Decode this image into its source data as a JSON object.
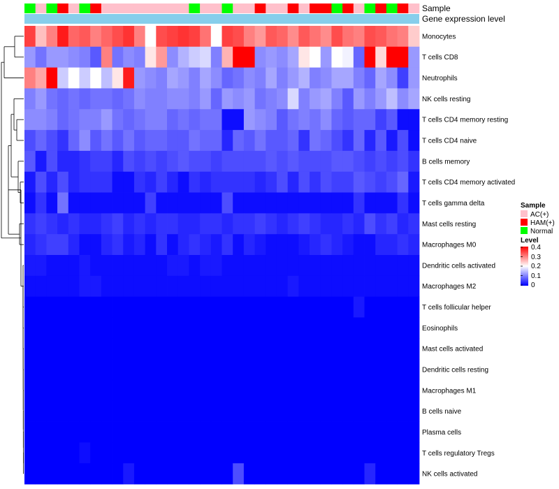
{
  "colors": {
    "low": "#0000ff",
    "mid": "#ffffff",
    "high": "#ff0000",
    "expression_band": "#87ceeb",
    "sample_colors": {
      "AC(+)": "#ffc0cb",
      "HAM(+)": "#ff0000",
      "Normal": "#00ff00"
    }
  },
  "chart_data": {
    "type": "heatmap",
    "title": "",
    "annotation_tracks": [
      "Sample",
      "Gene expression level"
    ],
    "samples": [
      "Normal",
      "AC(+)",
      "Normal",
      "HAM(+)",
      "AC(+)",
      "Normal",
      "HAM(+)",
      "AC(+)",
      "AC(+)",
      "AC(+)",
      "AC(+)",
      "AC(+)",
      "AC(+)",
      "AC(+)",
      "AC(+)",
      "Normal",
      "AC(+)",
      "AC(+)",
      "Normal",
      "AC(+)",
      "AC(+)",
      "HAM(+)",
      "AC(+)",
      "AC(+)",
      "HAM(+)",
      "AC(+)",
      "HAM(+)",
      "HAM(+)",
      "Normal",
      "HAM(+)",
      "AC(+)",
      "Normal",
      "HAM(+)",
      "Normal",
      "HAM(+)",
      "AC(+)"
    ],
    "rows": [
      "Monocytes",
      "T cells CD8",
      "Neutrophils",
      "NK cells resting",
      "T cells CD4 memory resting",
      "T cells CD4 naive",
      "B cells memory",
      "T cells CD4 memory activated",
      "T cells gamma delta",
      "Mast cells resting",
      "Macrophages M0",
      "Dendritic cells activated",
      "Macrophages M2",
      "T cells follicular helper",
      "Eosinophils",
      "Mast cells activated",
      "Dendritic cells resting",
      "Macrophages M1",
      "B cells naive",
      "Plasma cells",
      "T cells regulatory  Tregs",
      "NK cells activated"
    ],
    "values": [
      [
        0.35,
        0.25,
        0.3,
        0.38,
        0.32,
        0.33,
        0.3,
        0.32,
        0.34,
        0.36,
        0.3,
        0.2,
        0.34,
        0.35,
        0.36,
        0.35,
        0.31,
        0.2,
        0.35,
        0.34,
        0.3,
        0.28,
        0.33,
        0.32,
        0.29,
        0.33,
        0.31,
        0.29,
        0.34,
        0.31,
        0.3,
        0.34,
        0.33,
        0.31,
        0.3,
        0.24
      ],
      [
        0.12,
        0.09,
        0.12,
        0.12,
        0.11,
        0.1,
        0.07,
        0.3,
        0.09,
        0.11,
        0.1,
        0.22,
        0.28,
        0.11,
        0.14,
        0.16,
        0.17,
        0.1,
        0.26,
        0.4,
        0.4,
        0.11,
        0.12,
        0.11,
        0.13,
        0.22,
        0.2,
        0.12,
        0.2,
        0.19,
        0.08,
        0.4,
        0.23,
        0.4,
        0.4,
        0.12
      ],
      [
        0.3,
        0.27,
        0.4,
        0.16,
        0.2,
        0.16,
        0.2,
        0.15,
        0.22,
        0.38,
        0.12,
        0.11,
        0.1,
        0.13,
        0.12,
        0.1,
        0.13,
        0.11,
        0.08,
        0.09,
        0.11,
        0.1,
        0.13,
        0.1,
        0.12,
        0.14,
        0.1,
        0.11,
        0.13,
        0.13,
        0.1,
        0.08,
        0.13,
        0.11,
        0.05,
        0.12
      ],
      [
        0.1,
        0.12,
        0.09,
        0.08,
        0.09,
        0.08,
        0.09,
        0.09,
        0.08,
        0.09,
        0.11,
        0.1,
        0.1,
        0.11,
        0.11,
        0.1,
        0.12,
        0.08,
        0.12,
        0.11,
        0.12,
        0.09,
        0.1,
        0.11,
        0.17,
        0.1,
        0.12,
        0.13,
        0.1,
        0.07,
        0.12,
        0.1,
        0.12,
        0.15,
        0.11,
        0.13
      ],
      [
        0.11,
        0.11,
        0.1,
        0.08,
        0.09,
        0.1,
        0.1,
        0.12,
        0.09,
        0.08,
        0.09,
        0.1,
        0.1,
        0.08,
        0.09,
        0.08,
        0.09,
        0.09,
        0.01,
        0.01,
        0.12,
        0.11,
        0.1,
        0.07,
        0.09,
        0.1,
        0.09,
        0.11,
        0.08,
        0.07,
        0.08,
        0.08,
        0.05,
        0.07,
        0.01,
        0.01
      ],
      [
        0.06,
        0.08,
        0.06,
        0.04,
        0.08,
        0.11,
        0.07,
        0.09,
        0.07,
        0.09,
        0.07,
        0.08,
        0.08,
        0.07,
        0.07,
        0.09,
        0.08,
        0.08,
        0.03,
        0.08,
        0.07,
        0.09,
        0.07,
        0.07,
        0.08,
        0.04,
        0.09,
        0.08,
        0.06,
        0.04,
        0.08,
        0.03,
        0.07,
        0.02,
        0.06,
        0.01
      ],
      [
        0.07,
        0.02,
        0.06,
        0.03,
        0.03,
        0.04,
        0.05,
        0.05,
        0.03,
        0.06,
        0.05,
        0.06,
        0.05,
        0.06,
        0.07,
        0.06,
        0.06,
        0.05,
        0.06,
        0.06,
        0.06,
        0.06,
        0.07,
        0.06,
        0.07,
        0.06,
        0.06,
        0.06,
        0.07,
        0.07,
        0.06,
        0.05,
        0.06,
        0.05,
        0.06,
        0.04
      ],
      [
        0.02,
        0.06,
        0.03,
        0.06,
        0.03,
        0.04,
        0.04,
        0.04,
        0.01,
        0.01,
        0.04,
        0.03,
        0.05,
        0.03,
        0.01,
        0.04,
        0.03,
        0.04,
        0.04,
        0.04,
        0.04,
        0.03,
        0.04,
        0.06,
        0.03,
        0.06,
        0.04,
        0.06,
        0.05,
        0.05,
        0.07,
        0.06,
        0.05,
        0.06,
        0.08,
        0.02
      ],
      [
        0.01,
        0.04,
        0.01,
        0.09,
        0.01,
        0.01,
        0.01,
        0.01,
        0.01,
        0.01,
        0.01,
        0.05,
        0.01,
        0.01,
        0.01,
        0.01,
        0.01,
        0.01,
        0.06,
        0.01,
        0.01,
        0.01,
        0.01,
        0.01,
        0.01,
        0.01,
        0.01,
        0.01,
        0.01,
        0.01,
        0.04,
        0.01,
        0.01,
        0.01,
        0.04,
        0.01
      ],
      [
        0.04,
        0.05,
        0.04,
        0.03,
        0.04,
        0.03,
        0.03,
        0.04,
        0.05,
        0.03,
        0.04,
        0.03,
        0.04,
        0.04,
        0.03,
        0.03,
        0.04,
        0.04,
        0.03,
        0.04,
        0.04,
        0.05,
        0.04,
        0.03,
        0.04,
        0.05,
        0.04,
        0.03,
        0.03,
        0.04,
        0.03,
        0.06,
        0.04,
        0.05,
        0.03,
        0.04
      ],
      [
        0.03,
        0.04,
        0.05,
        0.05,
        0.03,
        0.01,
        0.01,
        0.03,
        0.04,
        0.02,
        0.03,
        0.01,
        0.04,
        0.01,
        0.03,
        0.04,
        0.03,
        0.02,
        0.04,
        0.01,
        0.03,
        0.02,
        0.01,
        0.01,
        0.01,
        0.02,
        0.03,
        0.04,
        0.03,
        0.02,
        0.01,
        0.01,
        0.03,
        0.03,
        0.04,
        0.03
      ],
      [
        0.02,
        0.02,
        0.01,
        0.01,
        0.01,
        0.02,
        0.01,
        0.01,
        0.01,
        0.01,
        0.01,
        0.01,
        0.01,
        0.02,
        0.02,
        0.01,
        0.02,
        0.02,
        0.01,
        0.01,
        0.01,
        0.01,
        0.01,
        0.01,
        0.01,
        0.01,
        0.01,
        0.01,
        0.01,
        0.01,
        0.01,
        0.01,
        0.01,
        0.01,
        0.01,
        0.01
      ],
      [
        0.01,
        0.01,
        0.01,
        0.01,
        0.01,
        0.02,
        0.02,
        0.01,
        0.01,
        0.01,
        0.01,
        0.01,
        0.01,
        0.01,
        0.01,
        0.01,
        0.01,
        0.01,
        0.01,
        0.01,
        0.01,
        0.01,
        0.01,
        0.01,
        0.02,
        0.01,
        0.01,
        0.01,
        0.01,
        0.01,
        0.01,
        0.01,
        0.01,
        0.01,
        0.01,
        0.01
      ],
      [
        0.0,
        0.0,
        0.0,
        0.0,
        0.0,
        0.0,
        0.0,
        0.0,
        0.0,
        0.0,
        0.0,
        0.0,
        0.0,
        0.0,
        0.0,
        0.0,
        0.0,
        0.0,
        0.0,
        0.0,
        0.0,
        0.0,
        0.0,
        0.0,
        0.0,
        0.0,
        0.0,
        0.0,
        0.0,
        0.0,
        0.02,
        0.0,
        0.0,
        0.0,
        0.0,
        0.0
      ],
      [
        0.0,
        0.0,
        0.0,
        0.0,
        0.0,
        0.0,
        0.0,
        0.0,
        0.0,
        0.0,
        0.0,
        0.0,
        0.0,
        0.0,
        0.0,
        0.0,
        0.0,
        0.0,
        0.0,
        0.0,
        0.0,
        0.0,
        0.0,
        0.0,
        0.0,
        0.0,
        0.0,
        0.0,
        0.0,
        0.0,
        0.0,
        0.0,
        0.0,
        0.0,
        0.0,
        0.0
      ],
      [
        0.0,
        0.0,
        0.0,
        0.0,
        0.0,
        0.0,
        0.0,
        0.0,
        0.0,
        0.0,
        0.0,
        0.0,
        0.0,
        0.0,
        0.0,
        0.0,
        0.0,
        0.0,
        0.0,
        0.0,
        0.0,
        0.0,
        0.0,
        0.0,
        0.0,
        0.0,
        0.0,
        0.0,
        0.0,
        0.0,
        0.0,
        0.0,
        0.0,
        0.0,
        0.0,
        0.0
      ],
      [
        0.0,
        0.0,
        0.0,
        0.0,
        0.0,
        0.0,
        0.0,
        0.0,
        0.0,
        0.0,
        0.0,
        0.0,
        0.0,
        0.0,
        0.0,
        0.0,
        0.0,
        0.0,
        0.0,
        0.0,
        0.0,
        0.0,
        0.0,
        0.0,
        0.0,
        0.0,
        0.0,
        0.0,
        0.0,
        0.0,
        0.0,
        0.0,
        0.0,
        0.0,
        0.0,
        0.0
      ],
      [
        0.0,
        0.0,
        0.0,
        0.0,
        0.0,
        0.0,
        0.0,
        0.0,
        0.0,
        0.0,
        0.0,
        0.0,
        0.0,
        0.0,
        0.0,
        0.0,
        0.0,
        0.0,
        0.0,
        0.0,
        0.0,
        0.0,
        0.0,
        0.0,
        0.0,
        0.0,
        0.0,
        0.0,
        0.0,
        0.0,
        0.0,
        0.0,
        0.0,
        0.0,
        0.0,
        0.0
      ],
      [
        0.0,
        0.0,
        0.0,
        0.0,
        0.0,
        0.0,
        0.0,
        0.0,
        0.0,
        0.0,
        0.0,
        0.0,
        0.0,
        0.0,
        0.0,
        0.0,
        0.0,
        0.0,
        0.0,
        0.0,
        0.0,
        0.0,
        0.0,
        0.0,
        0.0,
        0.0,
        0.0,
        0.0,
        0.0,
        0.0,
        0.0,
        0.0,
        0.0,
        0.0,
        0.0,
        0.0
      ],
      [
        0.0,
        0.0,
        0.0,
        0.0,
        0.0,
        0.0,
        0.0,
        0.0,
        0.0,
        0.0,
        0.0,
        0.0,
        0.0,
        0.0,
        0.0,
        0.0,
        0.0,
        0.0,
        0.0,
        0.0,
        0.0,
        0.0,
        0.0,
        0.0,
        0.0,
        0.0,
        0.0,
        0.0,
        0.0,
        0.0,
        0.0,
        0.0,
        0.0,
        0.0,
        0.0,
        0.0
      ],
      [
        0.0,
        0.0,
        0.0,
        0.0,
        0.0,
        0.01,
        0.0,
        0.0,
        0.0,
        0.0,
        0.0,
        0.0,
        0.0,
        0.0,
        0.0,
        0.0,
        0.0,
        0.0,
        0.0,
        0.0,
        0.0,
        0.0,
        0.0,
        0.0,
        0.0,
        0.0,
        0.0,
        0.0,
        0.0,
        0.0,
        0.0,
        0.0,
        0.0,
        0.0,
        0.0,
        0.0
      ],
      [
        0.0,
        0.0,
        0.0,
        0.0,
        0.0,
        0.0,
        0.0,
        0.0,
        0.0,
        0.02,
        0.0,
        0.0,
        0.0,
        0.0,
        0.0,
        0.0,
        0.0,
        0.0,
        0.0,
        0.06,
        0.0,
        0.0,
        0.0,
        0.0,
        0.0,
        0.0,
        0.0,
        0.0,
        0.0,
        0.0,
        0.0,
        0.03,
        0.0,
        0.0,
        0.0,
        0.0
      ]
    ],
    "legend": {
      "sample_title": "Sample",
      "sample_entries": [
        "AC(+)",
        "HAM(+)",
        "Normal"
      ],
      "level_title": "Level",
      "level_ticks": [
        "0.4",
        "0.3",
        "0.2",
        "0.1",
        "0"
      ],
      "level_range": [
        0,
        0.4
      ]
    }
  }
}
